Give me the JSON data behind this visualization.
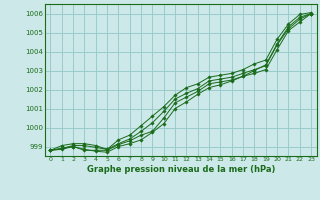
{
  "background_color": "#cce8e8",
  "grid_color": "#99cccc",
  "line_color": "#1a6b1a",
  "marker_color": "#1a6b1a",
  "title": "Graphe pression niveau de la mer (hPa)",
  "xlim": [
    -0.5,
    23.5
  ],
  "ylim": [
    998.5,
    1006.5
  ],
  "yticks": [
    999,
    1000,
    1001,
    1002,
    1003,
    1004,
    1005,
    1006
  ],
  "xticks": [
    0,
    1,
    2,
    3,
    4,
    5,
    6,
    7,
    8,
    9,
    10,
    11,
    12,
    13,
    14,
    15,
    16,
    17,
    18,
    19,
    20,
    21,
    22,
    23
  ],
  "series": [
    [
      998.8,
      998.9,
      999.0,
      998.8,
      998.8,
      998.8,
      999.1,
      999.3,
      999.6,
      999.8,
      1000.5,
      1001.3,
      1001.6,
      1001.9,
      1002.3,
      1002.4,
      1002.5,
      1002.7,
      1003.0,
      1003.3,
      1004.4,
      1005.3,
      1005.8,
      1006.0
    ],
    [
      998.8,
      998.85,
      999.0,
      998.85,
      998.75,
      998.7,
      999.0,
      999.15,
      999.35,
      999.75,
      1000.2,
      1001.0,
      1001.35,
      1001.75,
      1002.1,
      1002.25,
      1002.45,
      1002.7,
      1002.85,
      1003.05,
      1004.1,
      1005.1,
      1005.55,
      1006.0
    ],
    [
      998.8,
      998.9,
      999.05,
      999.05,
      998.95,
      998.85,
      999.15,
      999.4,
      999.8,
      1000.25,
      1000.85,
      1001.5,
      1001.8,
      1002.05,
      1002.45,
      1002.55,
      1002.65,
      1002.85,
      1003.05,
      1003.25,
      1004.35,
      1005.2,
      1005.7,
      1006.0
    ],
    [
      998.8,
      999.05,
      999.15,
      999.15,
      999.05,
      998.85,
      999.35,
      999.6,
      1000.1,
      1000.6,
      1001.1,
      1001.7,
      1002.1,
      1002.3,
      1002.65,
      1002.75,
      1002.85,
      1003.05,
      1003.35,
      1003.55,
      1004.65,
      1005.45,
      1005.95,
      1006.05
    ]
  ]
}
